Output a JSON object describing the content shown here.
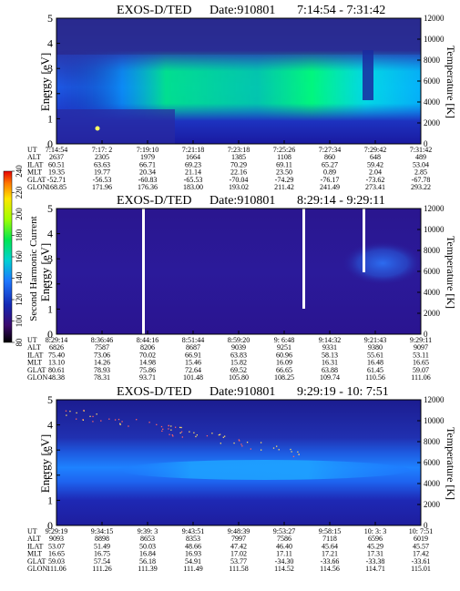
{
  "colors": {
    "background": "#ffffff",
    "axis": "#000000",
    "spectrogram_low": "#1a0a8c",
    "spectrogram_high": "#00ff66"
  },
  "chart_data": [
    {
      "type": "heatmap",
      "title": "EXOS-D/TED",
      "date_label": "Date:910801",
      "time_range": "7:14:54 - 7:31:42",
      "ylabel": "Energy [eV]",
      "ylabel_right": "Temperature [K]",
      "ylim": [
        0,
        5
      ],
      "ylim_right": [
        0,
        12000
      ],
      "yticks": [
        0,
        1,
        2,
        3,
        4,
        5
      ],
      "yticks_right": [
        0,
        2000,
        4000,
        6000,
        8000,
        10000,
        12000
      ],
      "ephemeris_labels": [
        "UT",
        "ALT",
        "ILAT",
        "MLT",
        "GLAT",
        "GLON"
      ],
      "ephemeris": [
        [
          "7:14:54",
          "2637",
          "60.51",
          "19.35",
          "-52.71",
          "168.85"
        ],
        [
          "7:17: 2",
          "2305",
          "63.63",
          "19.77",
          "-56.53",
          "171.96"
        ],
        [
          "7:19:10",
          "1979",
          "66.71",
          "20.34",
          "-60.83",
          "176.36"
        ],
        [
          "7:21:18",
          "1664",
          "69.23",
          "21.14",
          "-65.53",
          "183.00"
        ],
        [
          "7:23:18",
          "1385",
          "70.29",
          "22.16",
          "-70.04",
          "193.02"
        ],
        [
          "7:25:26",
          "1108",
          "69.11",
          "23.50",
          "-74.29",
          "211.42"
        ],
        [
          "7:27:34",
          "860",
          "65.27",
          "0.89",
          "-76.17",
          "241.49"
        ],
        [
          "7:29:42",
          "648",
          "59.42",
          "2.04",
          "-73.62",
          "273.41"
        ],
        [
          "7:31:42",
          "489",
          "53.04",
          "2.85",
          "-67.78",
          "293.22"
        ]
      ]
    },
    {
      "type": "heatmap",
      "title": "EXOS-D/TED",
      "date_label": "Date:910801",
      "time_range": "8:29:14 - 9:29:11",
      "ylabel": "Energy [eV]",
      "ylabel_right": "Temperature [K]",
      "ylim": [
        0,
        5
      ],
      "ylim_right": [
        0,
        12000
      ],
      "yticks": [
        0,
        1,
        2,
        3,
        4,
        5
      ],
      "yticks_right": [
        0,
        2000,
        4000,
        6000,
        8000,
        10000,
        12000
      ],
      "ephemeris_labels": [
        "UT",
        "ALT",
        "ILAT",
        "MLT",
        "GLAT",
        "GLON"
      ],
      "ephemeris": [
        [
          "8:29:14",
          "6826",
          "75.40",
          "13.10",
          "80.61",
          "48.38"
        ],
        [
          "8:36:46",
          "7587",
          "73.06",
          "14.26",
          "78.93",
          "78.31"
        ],
        [
          "8:44:16",
          "8206",
          "70.02",
          "14.98",
          "75.86",
          "93.71"
        ],
        [
          "8:51:44",
          "8687",
          "66.91",
          "15.46",
          "72.64",
          "101.48"
        ],
        [
          "8:59:20",
          "9039",
          "63.83",
          "15.82",
          "69.52",
          "105.80"
        ],
        [
          "9: 6:48",
          "9251",
          "60.96",
          "16.09",
          "66.65",
          "108.25"
        ],
        [
          "9:14:32",
          "9331",
          "58.13",
          "16.31",
          "63.88",
          "109.74"
        ],
        [
          "9:21:43",
          "9380",
          "55.61",
          "16.48",
          "61.45",
          "110.56"
        ],
        [
          "9:29:11",
          "9097",
          "53.11",
          "16.65",
          "59.07",
          "111.06"
        ]
      ]
    },
    {
      "type": "heatmap",
      "title": "EXOS-D/TED",
      "date_label": "Date:910801",
      "time_range": "9:29:19 - 10: 7:51",
      "ylabel": "Energy [eV]",
      "ylabel_right": "Temperature [K]",
      "ylim": [
        0,
        5
      ],
      "ylim_right": [
        0,
        12000
      ],
      "yticks": [
        0,
        1,
        2,
        3,
        4,
        5
      ],
      "yticks_right": [
        0,
        2000,
        4000,
        6000,
        8000,
        10000,
        12000
      ],
      "ephemeris_labels": [
        "UT",
        "ALT",
        "ILAT",
        "MLT",
        "GLAT",
        "GLON"
      ],
      "ephemeris": [
        [
          "9:29:19",
          "9093",
          "53.07",
          "16.65",
          "59.03",
          "111.06"
        ],
        [
          "9:34:15",
          "8898",
          "51.49",
          "16.75",
          "57.54",
          "111.26"
        ],
        [
          "9:39: 3",
          "8653",
          "50.03",
          "16.84",
          "56.18",
          "111.39"
        ],
        [
          "9:43:51",
          "8353",
          "48.66",
          "16.93",
          "54.91",
          "111.49"
        ],
        [
          "9:48:39",
          "7997",
          "47.42",
          "17.02",
          "53.77",
          "111.58"
        ],
        [
          "9:53:27",
          "7586",
          "46.40",
          "17.11",
          "-34.30",
          "114.52"
        ],
        [
          "9:58:15",
          "7118",
          "45.64",
          "17.21",
          "-33.66",
          "114.56"
        ],
        [
          "10: 3: 3",
          "6596",
          "45.29",
          "17.31",
          "-33.38",
          "114.71"
        ],
        [
          "10: 7:51",
          "6019",
          "45.57",
          "17.42",
          "-33.61",
          "115.01"
        ]
      ]
    }
  ],
  "colorbar": {
    "label": "Second Harmonic Current",
    "ticks": [
      80,
      100,
      120,
      140,
      160,
      180,
      200,
      220,
      240
    ],
    "range": [
      80,
      240
    ]
  }
}
